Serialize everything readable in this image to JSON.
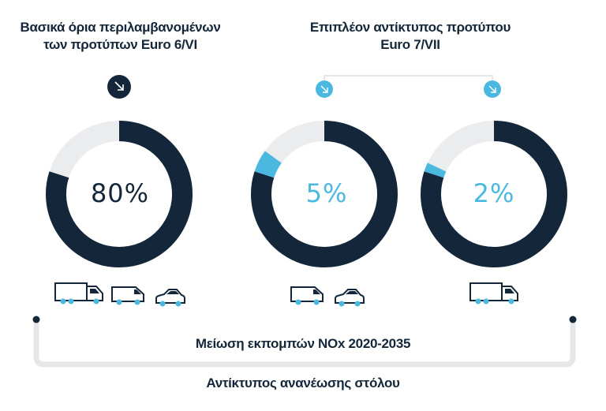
{
  "left_heading": {
    "line1": "Βασικά όρια περιλαμβανομένων",
    "line2": "των προτύπων Euro 6/VI"
  },
  "right_heading": {
    "line1": "Επιπλέον αντίκτυπος προτύπου",
    "line2": "Euro 7/VII"
  },
  "colors": {
    "navy": "#14273a",
    "accent": "#4bb8e0",
    "track": "#ebecee",
    "line": "#e6e7e9"
  },
  "chart_data": {
    "type": "pie",
    "variant": "donut",
    "title": "Μείωση εκπομπών NOx 2020-2035",
    "subtitle": "Αντίκτυπος ανανέωσης στόλου",
    "series": [
      {
        "name": "Βασικά όρια περιλαμβανομένων των προτύπων Euro 6/VI",
        "value": 80,
        "label": "80%",
        "vehicles": [
          "truck",
          "van",
          "car"
        ]
      },
      {
        "name": "Επιπλέον αντίκτυπος προτύπου Euro 7/VII",
        "value": 5,
        "label": "5%",
        "vehicles": [
          "van",
          "car"
        ]
      },
      {
        "name": "Επιπλέον αντίκτυπος προτύπου Euro 7/VII",
        "value": 2,
        "label": "2%",
        "vehicles": [
          "truck"
        ]
      }
    ]
  },
  "bottom": {
    "line1": "Μείωση εκπομπών NOx 2020-2035",
    "line2": "Αντίκτυπος ανανέωσης στόλου"
  }
}
